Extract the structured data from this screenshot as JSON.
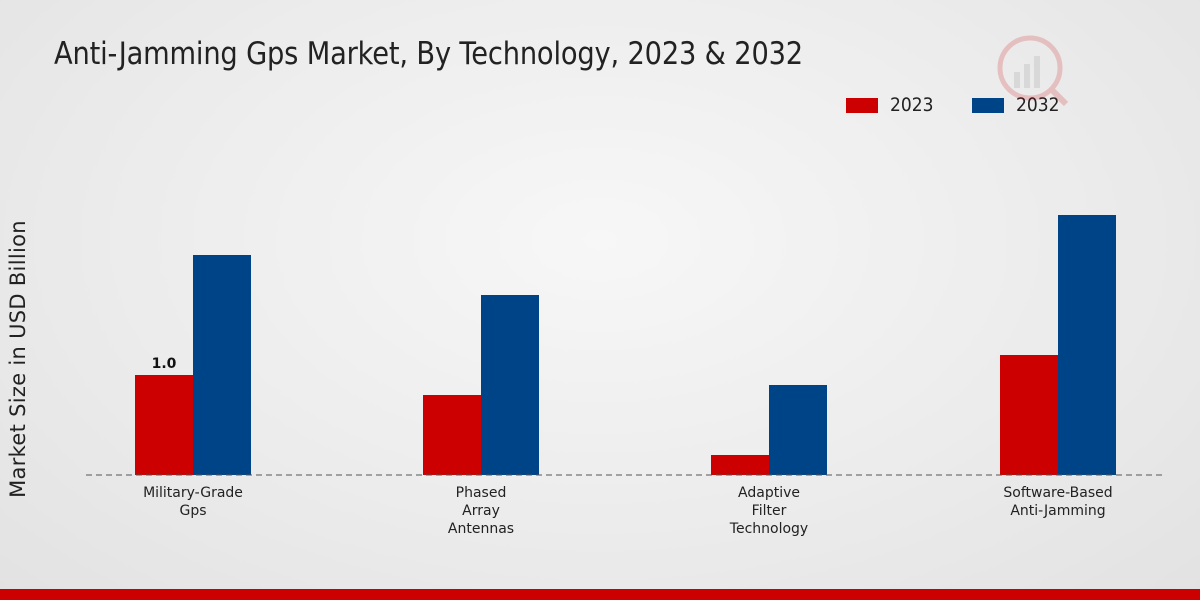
{
  "chart_data": {
    "type": "bar",
    "title": "Anti-Jamming Gps Market, By Technology, 2023 & 2032",
    "xlabel": "",
    "ylabel": "Market Size in USD Billion",
    "categories": [
      [
        "Military-Grade",
        "Gps"
      ],
      [
        "Phased",
        "Array",
        "Antennas"
      ],
      [
        "Adaptive",
        "Filter",
        "Technology"
      ],
      [
        "Software-Based",
        "Anti-Jamming"
      ]
    ],
    "series": [
      {
        "name": "2023",
        "values": [
          1.0,
          0.8,
          0.2,
          1.2
        ]
      },
      {
        "name": "2032",
        "values": [
          2.2,
          1.8,
          0.9,
          2.6
        ]
      }
    ],
    "ylim": [
      0,
      3.8
    ],
    "grid": false,
    "legend_position": "top-right",
    "data_labels": [
      {
        "series": 0,
        "index": 0,
        "text": "1.0"
      }
    ]
  },
  "colors": {
    "series_2023": "#cc0000",
    "series_2032": "#004488",
    "bottom_bar": "#cc0000"
  },
  "logo_icon": "watermark-logo-icon"
}
